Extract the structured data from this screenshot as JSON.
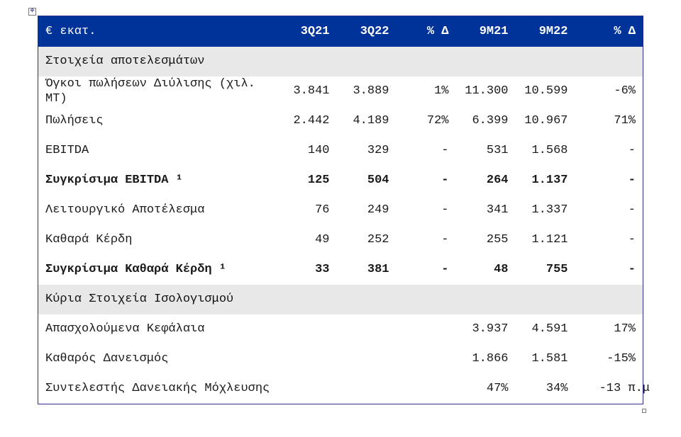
{
  "table": {
    "header": {
      "label": "€ εκατ.",
      "cols": [
        "3Q21",
        "3Q22",
        "% Δ",
        "9M21",
        "9M22",
        "% Δ"
      ]
    },
    "sections": [
      {
        "title": "Στοιχεία αποτελεσμάτων"
      },
      {
        "title": "Κύρια Στοιχεία Ισολογισμού"
      }
    ],
    "rows": [
      {
        "label": "Όγκοι πωλήσεων Διύλισης (χιλ. ΜΤ)",
        "v": [
          "3.841",
          "3.889",
          "1%",
          "11.300",
          "10.599",
          "-6%"
        ]
      },
      {
        "label": "Πωλήσεις",
        "v": [
          "2.442",
          "4.189",
          "72%",
          "6.399",
          "10.967",
          "71%"
        ]
      },
      {
        "label": "EBITDA",
        "v": [
          "140",
          "329",
          "-",
          "531",
          "1.568",
          "-"
        ]
      },
      {
        "label": "Συγκρίσιμα EBITDA ¹",
        "v": [
          "125",
          "504",
          "-",
          "264",
          "1.137",
          "-"
        ]
      },
      {
        "label": "Λειτουργικό Αποτέλεσμα",
        "v": [
          "76",
          "249",
          "-",
          "341",
          "1.337",
          "-"
        ]
      },
      {
        "label": "Καθαρά Κέρδη",
        "v": [
          "49",
          "252",
          "-",
          "255",
          "1.121",
          "-"
        ]
      },
      {
        "label": "Συγκρίσιμα Καθαρά Κέρδη ¹",
        "v": [
          "33",
          "381",
          "-",
          "48",
          "755",
          "-"
        ]
      },
      {
        "label": "Απασχολούμενα Κεφάλαια",
        "v": [
          "",
          "",
          "",
          "3.937",
          "4.591",
          "17%"
        ]
      },
      {
        "label": "Καθαρός Δανεισμός",
        "v": [
          "",
          "",
          "",
          "1.866",
          "1.581",
          "-15%"
        ]
      },
      {
        "label": "Συντελεστής Δανειακής Μόχλευσης",
        "v": [
          "",
          "",
          "",
          "47%",
          "34%",
          "-13 π.μ"
        ]
      }
    ]
  }
}
